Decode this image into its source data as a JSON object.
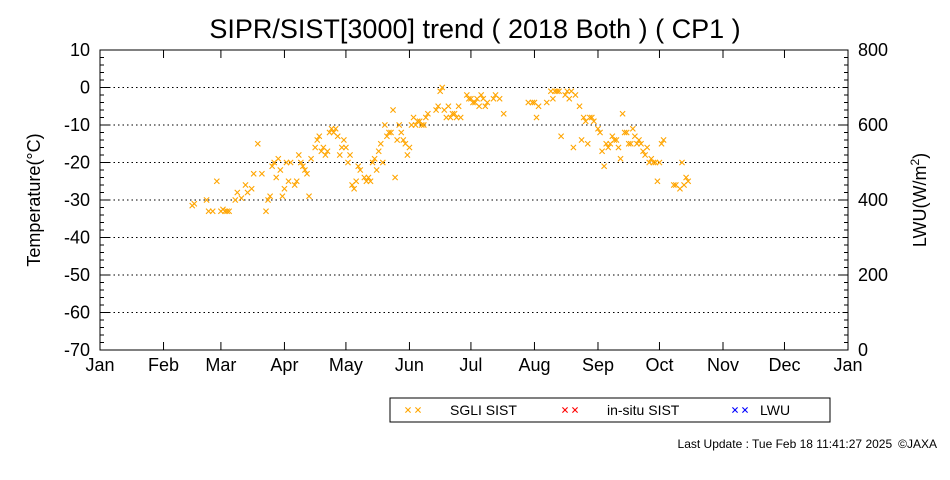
{
  "chart_data": {
    "type": "scatter",
    "title": "SIPR/SIST[3000] trend ( 2018 Both ) ( CP1 )",
    "xlabel": "",
    "ylabel": "Temperature(°C)",
    "y2label_main": "LWU(W/m",
    "y2label_sup": "2",
    "y2label_end": ")",
    "x_tick_labels": [
      "Jan",
      "Feb",
      "Mar",
      "Apr",
      "May",
      "Jun",
      "Jul",
      "Aug",
      "Sep",
      "Oct",
      "Nov",
      "Dec",
      "Jan"
    ],
    "ylim": [
      -70,
      10
    ],
    "y_ticks": [
      10,
      0,
      -10,
      -20,
      -30,
      -40,
      -50,
      -60,
      -70
    ],
    "y2lim": [
      0,
      800
    ],
    "y2_ticks": [
      800,
      600,
      400,
      200,
      0
    ],
    "xlim": [
      1,
      366
    ],
    "grid": "dotted horizontal",
    "legend_position": "bottom",
    "series": [
      {
        "name": "SGLI SIST",
        "color": "#FFA500",
        "marker": "x",
        "points": [
          [
            46,
            -31.5
          ],
          [
            47,
            -31
          ],
          [
            53,
            -30
          ],
          [
            54,
            -33
          ],
          [
            56,
            -33
          ],
          [
            58,
            -25
          ],
          [
            60,
            -33
          ],
          [
            61,
            -32.5
          ],
          [
            62,
            -33
          ],
          [
            63,
            -33
          ],
          [
            64,
            -33
          ],
          [
            67,
            -30
          ],
          [
            68,
            -28
          ],
          [
            70,
            -29.5
          ],
          [
            72,
            -26
          ],
          [
            73,
            -28
          ],
          [
            75,
            -27
          ],
          [
            76,
            -23
          ],
          [
            78,
            -15
          ],
          [
            80,
            -23
          ],
          [
            82,
            -33
          ],
          [
            83,
            -30
          ],
          [
            84,
            -29
          ],
          [
            85,
            -21
          ],
          [
            86,
            -20
          ],
          [
            87,
            -24
          ],
          [
            88,
            -19
          ],
          [
            89,
            -22
          ],
          [
            90,
            -29
          ],
          [
            91,
            -27
          ],
          [
            92,
            -20
          ],
          [
            93,
            -25
          ],
          [
            94,
            -20
          ],
          [
            96,
            -26
          ],
          [
            97,
            -25
          ],
          [
            98,
            -18
          ],
          [
            99,
            -20
          ],
          [
            100,
            -21
          ],
          [
            101,
            -22
          ],
          [
            102,
            -23
          ],
          [
            103,
            -29
          ],
          [
            104,
            -19
          ],
          [
            106,
            -16
          ],
          [
            107,
            -14
          ],
          [
            108,
            -13
          ],
          [
            109,
            -17
          ],
          [
            110,
            -16
          ],
          [
            111,
            -18
          ],
          [
            112,
            -17
          ],
          [
            113,
            -12
          ],
          [
            114,
            -11
          ],
          [
            115,
            -12
          ],
          [
            116,
            -11
          ],
          [
            117,
            -13
          ],
          [
            118,
            -18
          ],
          [
            119,
            -16
          ],
          [
            120,
            -14
          ],
          [
            121,
            -16
          ],
          [
            122,
            -20
          ],
          [
            123,
            -18
          ],
          [
            124,
            -26
          ],
          [
            125,
            -27
          ],
          [
            126,
            -25
          ],
          [
            127,
            -21
          ],
          [
            128,
            -22
          ],
          [
            130,
            -24
          ],
          [
            131,
            -25
          ],
          [
            132,
            -24
          ],
          [
            133,
            -25
          ],
          [
            134,
            -20
          ],
          [
            135,
            -19
          ],
          [
            136,
            -22
          ],
          [
            137,
            -17
          ],
          [
            138,
            -15
          ],
          [
            139,
            -20
          ],
          [
            140,
            -10
          ],
          [
            141,
            -13
          ],
          [
            142,
            -12
          ],
          [
            143,
            -12
          ],
          [
            144,
            -6
          ],
          [
            145,
            -24
          ],
          [
            146,
            -14
          ],
          [
            147,
            -10
          ],
          [
            148,
            -12
          ],
          [
            149,
            -14
          ],
          [
            150,
            -15
          ],
          [
            151,
            -18
          ],
          [
            152,
            -16
          ],
          [
            153,
            -10
          ],
          [
            154,
            -8
          ],
          [
            155,
            -10
          ],
          [
            156,
            -9
          ],
          [
            157,
            -9
          ],
          [
            158,
            -10
          ],
          [
            159,
            -10
          ],
          [
            160,
            -8
          ],
          [
            161,
            -7
          ],
          [
            165,
            -6
          ],
          [
            166,
            -5
          ],
          [
            167,
            -1
          ],
          [
            168,
            0
          ],
          [
            169,
            -6
          ],
          [
            170,
            -8
          ],
          [
            171,
            -5
          ],
          [
            172,
            -8
          ],
          [
            173,
            -7
          ],
          [
            174,
            -7
          ],
          [
            175,
            -8
          ],
          [
            176,
            -5
          ],
          [
            177,
            -8
          ],
          [
            180,
            -2
          ],
          [
            181,
            -3
          ],
          [
            182,
            -3
          ],
          [
            183,
            -4
          ],
          [
            184,
            -4
          ],
          [
            185,
            -3
          ],
          [
            186,
            -5
          ],
          [
            187,
            -2
          ],
          [
            188,
            -3
          ],
          [
            189,
            -5
          ],
          [
            190,
            -4
          ],
          [
            193,
            -3
          ],
          [
            194,
            -2
          ],
          [
            196,
            -3
          ],
          [
            198,
            -7
          ],
          [
            210,
            -4
          ],
          [
            212,
            -4
          ],
          [
            213,
            -4
          ],
          [
            214,
            -8
          ],
          [
            215,
            -5
          ],
          [
            219,
            -4
          ],
          [
            221,
            -1
          ],
          [
            222,
            -3
          ],
          [
            223,
            -1
          ],
          [
            224,
            -1
          ],
          [
            225,
            -1
          ],
          [
            226,
            -13
          ],
          [
            228,
            -2
          ],
          [
            229,
            -1
          ],
          [
            230,
            -3
          ],
          [
            231,
            -1
          ],
          [
            232,
            -16
          ],
          [
            233,
            -2
          ],
          [
            235,
            -5
          ],
          [
            236,
            -14
          ],
          [
            237,
            -8
          ],
          [
            238,
            -9
          ],
          [
            239,
            -15
          ],
          [
            240,
            -8
          ],
          [
            241,
            -8
          ],
          [
            242,
            -9
          ],
          [
            244,
            -11
          ],
          [
            245,
            -12
          ],
          [
            246,
            -17
          ],
          [
            247,
            -21
          ],
          [
            248,
            -15
          ],
          [
            249,
            -16
          ],
          [
            250,
            -15
          ],
          [
            251,
            -13
          ],
          [
            252,
            -14
          ],
          [
            253,
            -14
          ],
          [
            254,
            -16
          ],
          [
            255,
            -19
          ],
          [
            256,
            -7
          ],
          [
            257,
            -12
          ],
          [
            258,
            -12
          ],
          [
            259,
            -15
          ],
          [
            260,
            -15
          ],
          [
            261,
            -11
          ],
          [
            262,
            -13
          ],
          [
            263,
            -15
          ],
          [
            264,
            -14
          ],
          [
            265,
            -15
          ],
          [
            266,
            -17
          ],
          [
            267,
            -18
          ],
          [
            268,
            -16
          ],
          [
            269,
            -20
          ],
          [
            270,
            -19
          ],
          [
            271,
            -20
          ],
          [
            272,
            -20
          ],
          [
            273,
            -25
          ],
          [
            274,
            -20
          ],
          [
            275,
            -15
          ],
          [
            276,
            -14
          ],
          [
            281,
            -26
          ],
          [
            282,
            -26
          ],
          [
            284,
            -27
          ],
          [
            285,
            -20
          ],
          [
            286,
            -26
          ],
          [
            287,
            -24
          ],
          [
            288,
            -25
          ]
        ]
      },
      {
        "name": "in-situ SIST",
        "color": "#FF0000",
        "marker": "x",
        "points": []
      },
      {
        "name": "LWU",
        "color": "#0000FF",
        "marker": "x",
        "points": []
      }
    ]
  },
  "footer": {
    "last_update": "Last Update : Tue Feb 18 11:41:27 2025",
    "copyright": "©JAXA"
  }
}
